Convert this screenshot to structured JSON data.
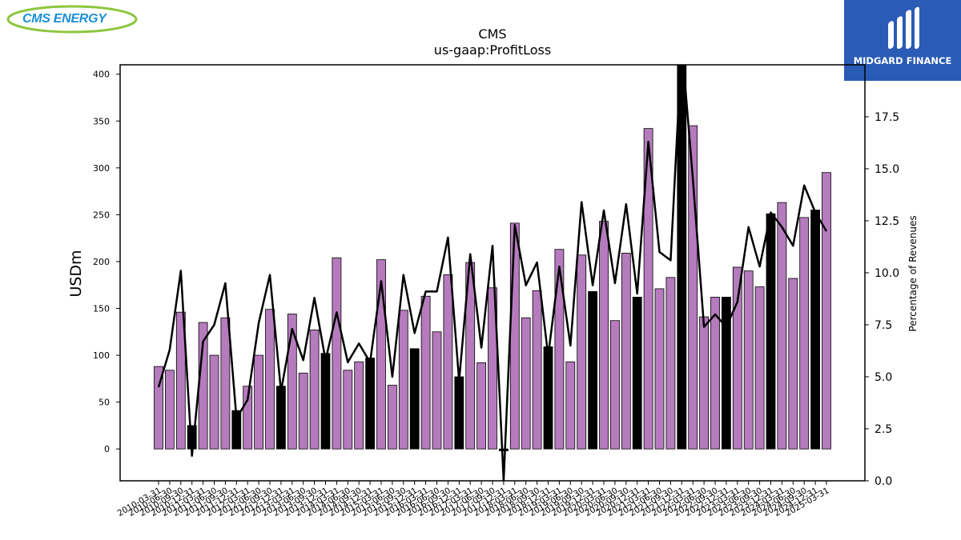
{
  "branding": {
    "left_logo": "CMS ENERGY",
    "right_logo": "MIDGARD FINANCE"
  },
  "colors": {
    "bar_fill": "#b57bbd",
    "bar_highlight": "#000000",
    "line": "#000000"
  },
  "chart_data": {
    "type": "bar",
    "title": "CMS",
    "subtitle": "us-gaap:ProfitLoss",
    "ylabel": "USDm",
    "y2label": "Percentage of Revenues",
    "ylim": [
      -34,
      410
    ],
    "y2lim": [
      0,
      20
    ],
    "yticks": [
      0,
      50,
      100,
      150,
      200,
      250,
      300,
      350,
      400
    ],
    "y2ticks": [
      "0.0",
      "2.5",
      "5.0",
      "7.5",
      "10.0",
      "12.5",
      "15.0",
      "17.5"
    ],
    "categories": [
      "2010-03-31",
      "2010-06-30",
      "2010-09-30",
      "2010-12-31",
      "2011-03-31",
      "2011-06-30",
      "2011-09-30",
      "2011-12-31",
      "2012-03-31",
      "2012-06-30",
      "2012-09-30",
      "2012-12-31",
      "2013-03-31",
      "2013-06-30",
      "2013-09-30",
      "2013-12-31",
      "2014-03-31",
      "2014-06-30",
      "2014-09-30",
      "2014-12-31",
      "2015-03-31",
      "2015-06-30",
      "2015-09-30",
      "2015-12-31",
      "2016-03-31",
      "2016-06-30",
      "2016-09-30",
      "2016-12-31",
      "2017-03-31",
      "2017-06-30",
      "2017-09-30",
      "2017-12-31",
      "2018-03-31",
      "2018-06-30",
      "2018-09-30",
      "2018-12-31",
      "2019-03-31",
      "2019-06-30",
      "2019-09-30",
      "2019-12-31",
      "2020-03-31",
      "2020-06-30",
      "2020-09-30",
      "2020-12-31",
      "2021-03-31",
      "2021-06-30",
      "2021-09-30",
      "2021-12-31",
      "2022-03-31",
      "2022-06-30",
      "2022-09-30",
      "2022-12-31",
      "2023-03-31",
      "2023-06-30",
      "2023-09-30",
      "2023-12-31",
      "2024-03-31",
      "2024-06-30",
      "2024-09-30",
      "2024-12-31",
      "2025-03-31"
    ],
    "values": [
      88,
      84,
      146,
      25,
      135,
      100,
      140,
      41,
      67,
      100,
      149,
      67,
      144,
      81,
      127,
      102,
      204,
      84,
      93,
      97,
      202,
      68,
      148,
      107,
      163,
      125,
      186,
      77,
      199,
      92,
      172,
      -2,
      241,
      140,
      169,
      109,
      213,
      93,
      207,
      168,
      243,
      137,
      209,
      162,
      342,
      171,
      183,
      431,
      345,
      141,
      162,
      162,
      194,
      190,
      173,
      251,
      263,
      182,
      247,
      255,
      295
    ],
    "highlighted": [
      3,
      7,
      11,
      15,
      19,
      23,
      27,
      31,
      35,
      39,
      43,
      47,
      51,
      55,
      59
    ],
    "line_series": {
      "name": "Percentage of Revenues",
      "values": [
        4.5,
        6.3,
        10.1,
        1.2,
        6.7,
        7.5,
        9.5,
        3.0,
        3.9,
        7.6,
        9.9,
        4.3,
        7.3,
        5.8,
        8.8,
        5.8,
        8.1,
        5.7,
        6.6,
        5.7,
        9.6,
        5.0,
        9.9,
        7.1,
        9.1,
        9.1,
        11.7,
        4.8,
        10.9,
        6.4,
        11.3,
        0.0,
        12.3,
        9.4,
        10.5,
        6.0,
        10.3,
        6.5,
        13.4,
        9.4,
        13.0,
        9.5,
        13.3,
        9.0,
        16.3,
        11.0,
        10.6,
        21.0,
        14.5,
        7.4,
        8.0,
        7.4,
        8.6,
        12.2,
        10.3,
        12.9,
        12.2,
        11.3,
        14.2,
        12.9,
        12.0
      ]
    }
  }
}
